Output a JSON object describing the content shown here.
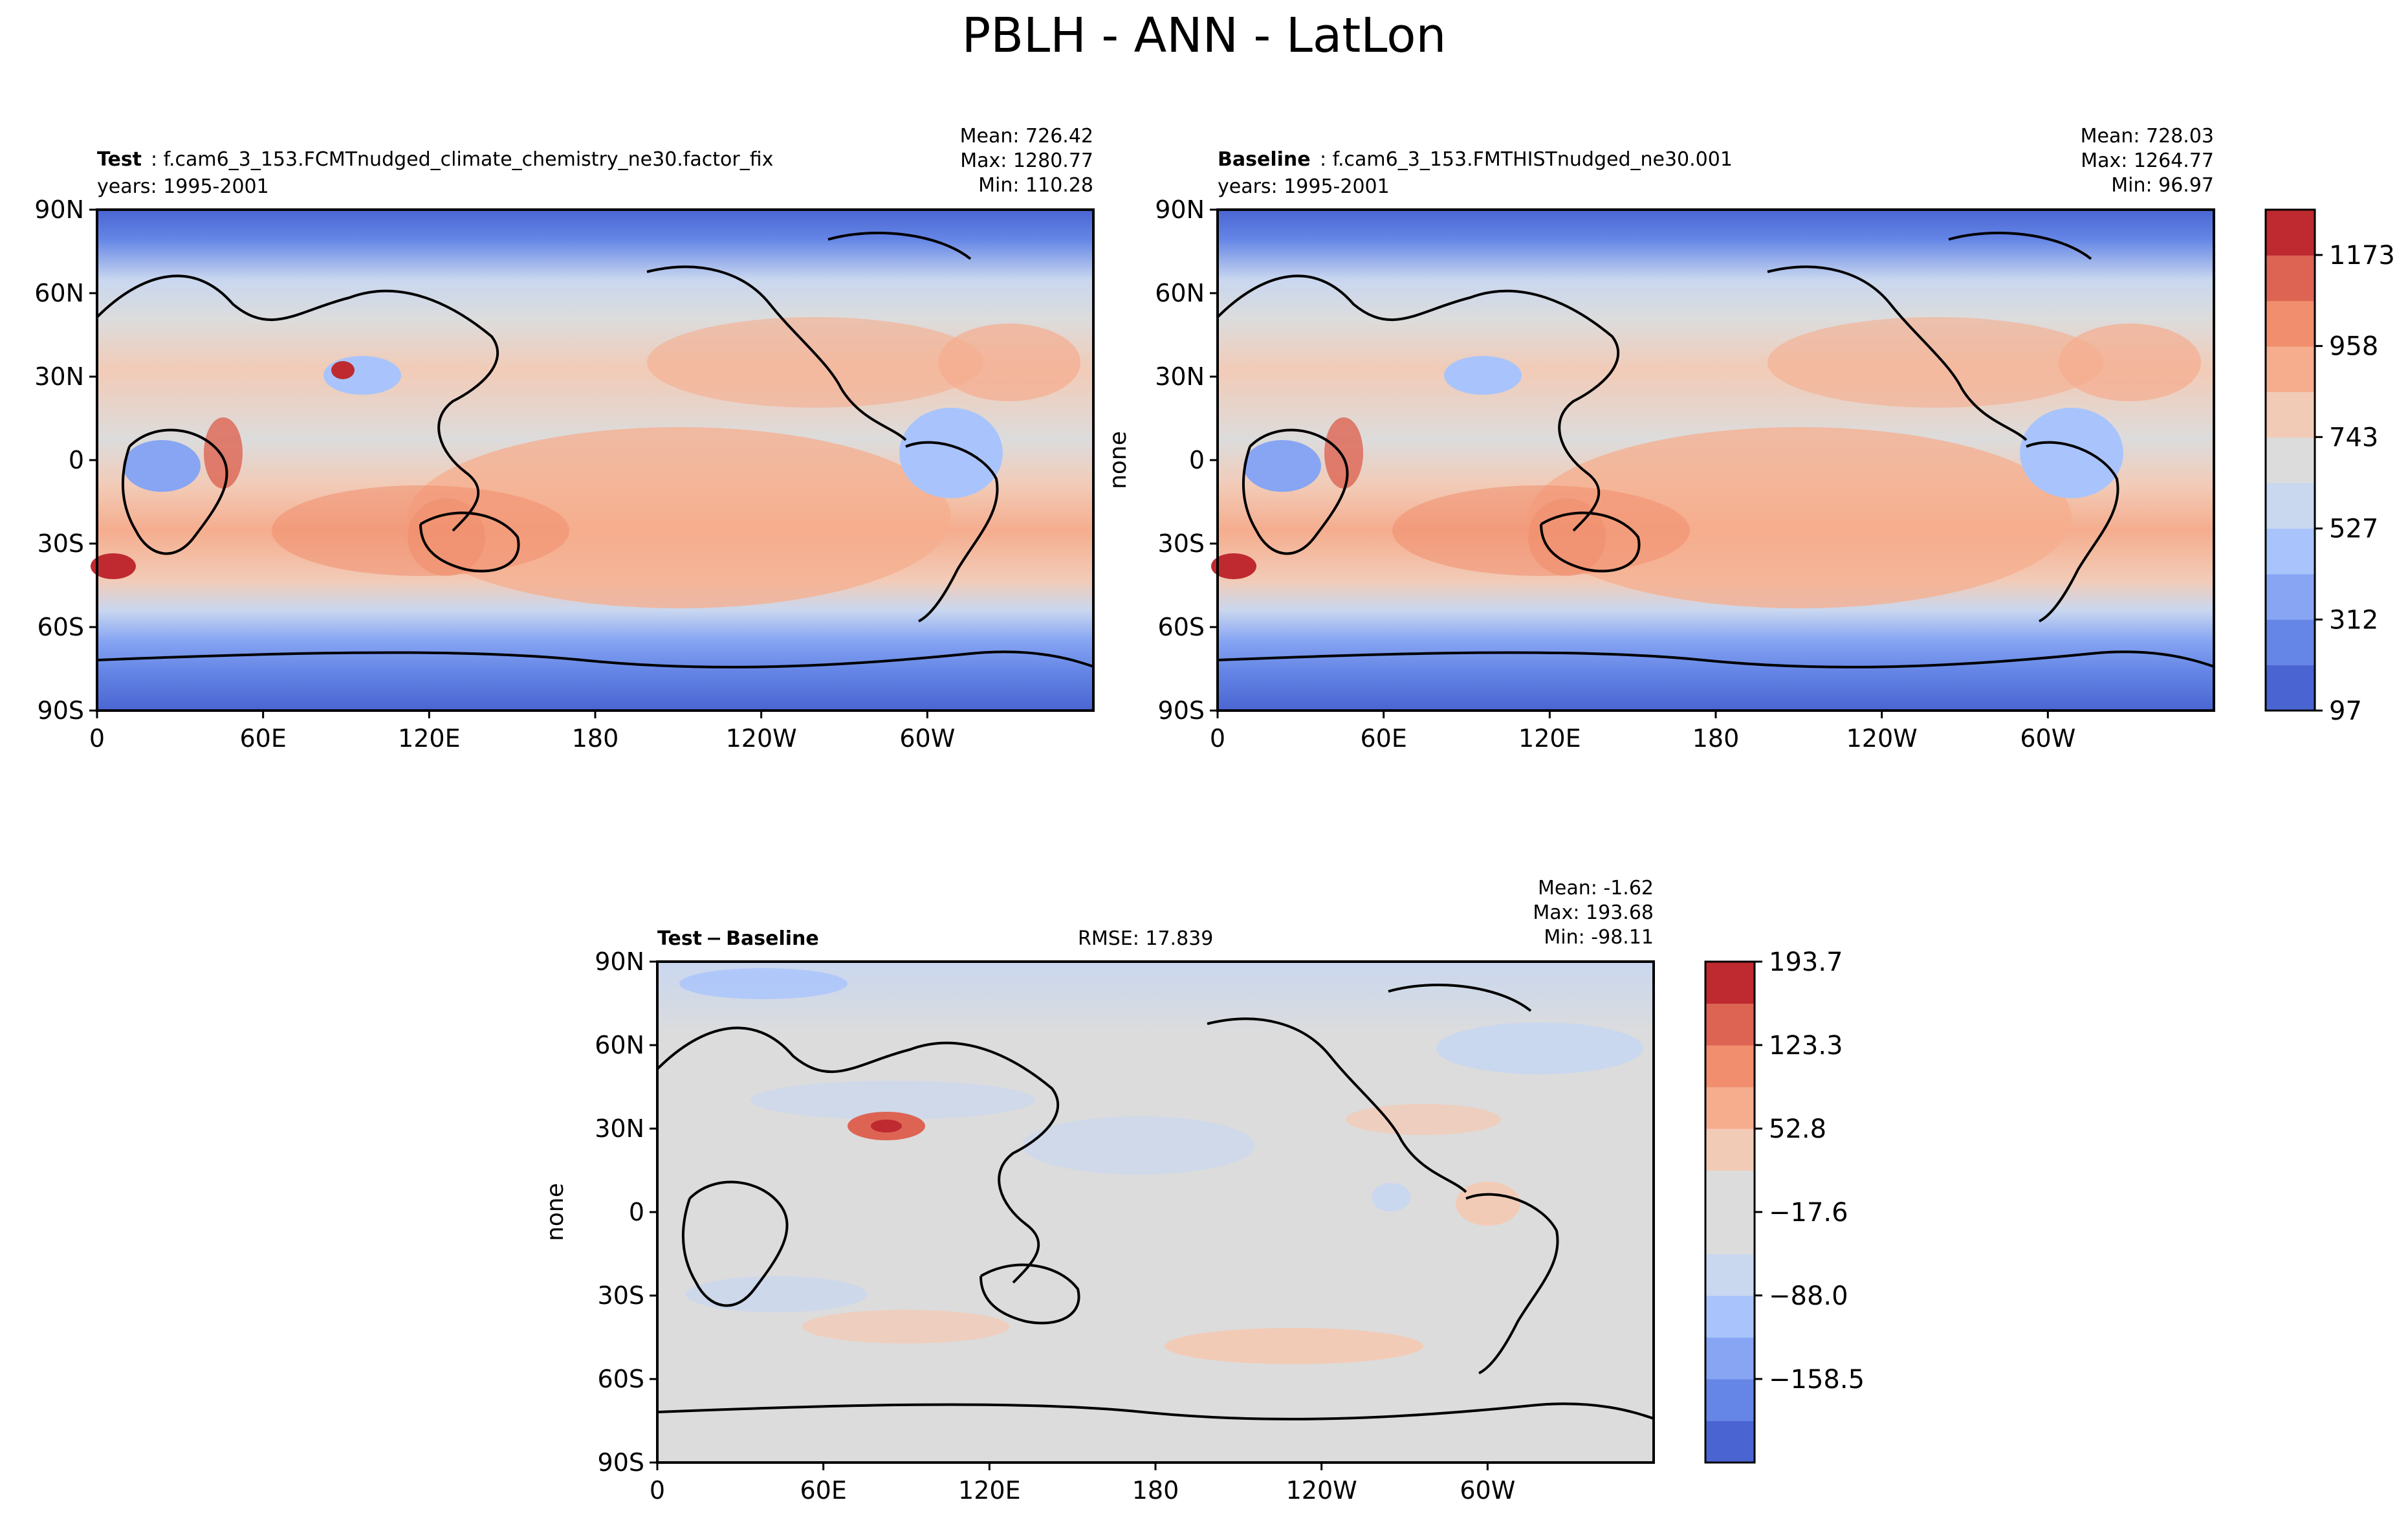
{
  "title": "PBLH - ANN - LatLon",
  "lat_ticks": [
    "90N",
    "60N",
    "30N",
    "0",
    "30S",
    "60S",
    "90S"
  ],
  "lon_ticks": [
    "0",
    "60E",
    "120E",
    "180",
    "120W",
    "60W"
  ],
  "chart_data": [
    {
      "type": "heatmap",
      "panel": "test",
      "label_bold": "Test",
      "label_rest": ": f.cam6_3_153.FCMTnudged_climate_chemistry_ne30.factor_fix",
      "years": "years: 1995-2001",
      "stats": [
        "Mean: 726.42",
        "Max: 1280.77",
        "Min: 110.28"
      ],
      "ylabel": "",
      "xlim": [
        0,
        360
      ],
      "ylim": [
        -90,
        90
      ]
    },
    {
      "type": "heatmap",
      "panel": "baseline",
      "label_bold": "Baseline",
      "label_rest": ": f.cam6_3_153.FMTHISTnudged_ne30.001",
      "years": "years: 1995-2001",
      "stats": [
        "Mean: 728.03",
        "Max: 1264.77",
        "Min: 96.97"
      ],
      "ylabel": "none",
      "xlim": [
        0,
        360
      ],
      "ylim": [
        -90,
        90
      ],
      "colorbar": {
        "min": 97,
        "max": 1280,
        "ticks": [
          97,
          312,
          527,
          743,
          958,
          1173
        ],
        "tick_labels": [
          "97",
          "312",
          "527",
          "743",
          "958",
          "1173"
        ],
        "colors": [
          "#4a65d2",
          "#6586e6",
          "#87a5f3",
          "#a9c4fc",
          "#c9d7ef",
          "#dcdcdc",
          "#f2cbb7",
          "#f5ad8e",
          "#f08e6d",
          "#dd6453",
          "#be2a2f"
        ]
      }
    },
    {
      "type": "heatmap",
      "panel": "difference",
      "label_bold": "Test − Baseline",
      "rmse": "RMSE: 17.839",
      "stats": [
        "Mean: -1.62",
        "Max: 193.68",
        "Min: -98.11"
      ],
      "ylabel": "none",
      "xlim": [
        0,
        360
      ],
      "ylim": [
        -90,
        90
      ],
      "colorbar": {
        "min": -229,
        "max": 193.7,
        "ticks": [
          -158.5,
          -88.0,
          -17.6,
          52.8,
          123.3,
          193.7
        ],
        "tick_labels": [
          "−158.5",
          "−88.0",
          "−17.6",
          "52.8",
          "123.3",
          "193.7"
        ],
        "colors": [
          "#4a65d2",
          "#6586e6",
          "#87a5f3",
          "#a9c4fc",
          "#c9d7ef",
          "#dcdcdc",
          "#dcdcdc",
          "#f2cbb7",
          "#f5ad8e",
          "#f08e6d",
          "#dd6453",
          "#be2a2f"
        ]
      }
    }
  ],
  "colors": {
    "land_outline": "#000000",
    "neutral": "#dcdcdc",
    "warm": "#f5ad8e",
    "cool": "#87a5f3",
    "deep_cool": "#4a65d2"
  }
}
